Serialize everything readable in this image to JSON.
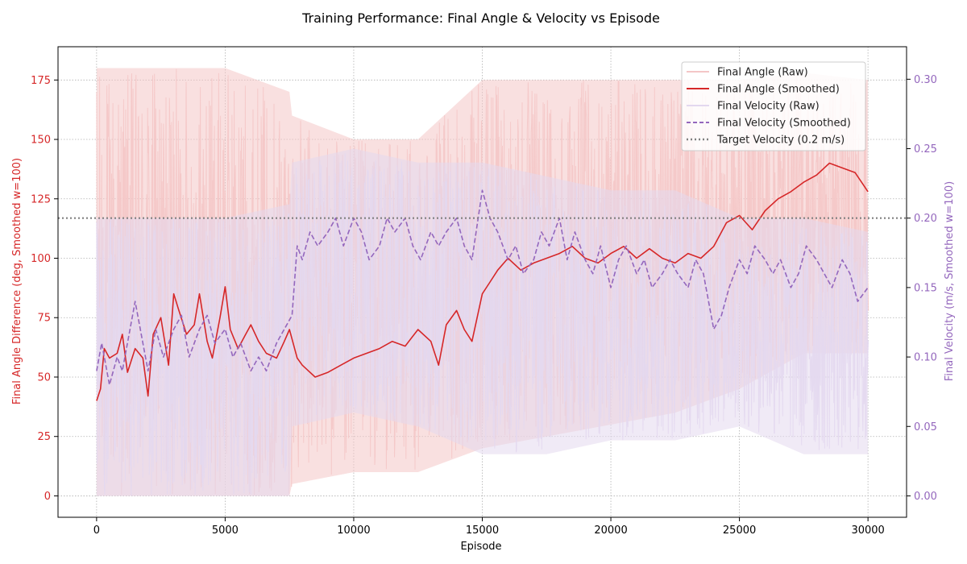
{
  "chart_data": {
    "type": "line",
    "title": "Training Performance: Final Angle & Velocity vs Episode",
    "xlabel": "Episode",
    "ylabel_left": "Final Angle Difference (deg, Smoothed w=100)",
    "ylabel_right": "Final Velocity (m/s, Smoothed w=100)",
    "xlim": [
      -1500,
      31500
    ],
    "ylim_left": [
      -9,
      189
    ],
    "ylim_right": [
      -0.0154,
      0.3234
    ],
    "x_ticks": [
      0,
      5000,
      10000,
      15000,
      20000,
      25000,
      30000
    ],
    "y_left_ticks": [
      0,
      25,
      50,
      75,
      100,
      125,
      150,
      175
    ],
    "y_right_ticks": [
      0.0,
      0.05,
      0.1,
      0.15,
      0.2,
      0.25,
      0.3
    ],
    "y_right_tick_labels": [
      "0.00",
      "0.05",
      "0.10",
      "0.15",
      "0.20",
      "0.25",
      "0.30"
    ],
    "grid": true,
    "legend_position": "top-right",
    "target_velocity": 0.2,
    "colors": {
      "angle": "#d62728",
      "angle_raw": "#f4c6c7",
      "velocity": "#9467bd",
      "velocity_raw": "#e3d8ef",
      "target": "#808080"
    },
    "series": [
      {
        "name": "Final Angle (Raw)",
        "axis": "left",
        "style": "raw-band",
        "x": [
          0,
          2500,
          5000,
          7500,
          7600,
          10000,
          12500,
          15000,
          17500,
          20000,
          22500,
          25000,
          27500,
          30000
        ],
        "low": [
          0,
          0,
          0,
          0,
          5,
          10,
          10,
          20,
          25,
          30,
          35,
          45,
          60,
          60
        ],
        "high": [
          180,
          180,
          180,
          170,
          160,
          150,
          150,
          175,
          175,
          175,
          175,
          175,
          178,
          175
        ]
      },
      {
        "name": "Final Angle (Smoothed)",
        "axis": "left",
        "style": "solid",
        "x": [
          0,
          150,
          300,
          500,
          800,
          1000,
          1200,
          1500,
          1800,
          2000,
          2200,
          2500,
          2800,
          3000,
          3200,
          3500,
          3800,
          4000,
          4300,
          4500,
          4800,
          5000,
          5200,
          5500,
          5800,
          6000,
          6300,
          6600,
          7000,
          7300,
          7500,
          7800,
          8000,
          8500,
          9000,
          9500,
          10000,
          10500,
          11000,
          11500,
          12000,
          12500,
          13000,
          13300,
          13600,
          14000,
          14300,
          14600,
          15000,
          15300,
          15600,
          16000,
          16500,
          17000,
          17500,
          18000,
          18500,
          19000,
          19500,
          20000,
          20500,
          21000,
          21500,
          22000,
          22500,
          23000,
          23500,
          24000,
          24500,
          25000,
          25500,
          26000,
          26500,
          27000,
          27500,
          28000,
          28500,
          29000,
          29500,
          30000
        ],
        "values": [
          40,
          45,
          62,
          58,
          60,
          68,
          52,
          62,
          58,
          42,
          68,
          75,
          55,
          85,
          78,
          68,
          72,
          85,
          65,
          58,
          75,
          88,
          70,
          62,
          68,
          72,
          65,
          60,
          58,
          65,
          70,
          58,
          55,
          50,
          52,
          55,
          58,
          60,
          62,
          65,
          63,
          70,
          65,
          55,
          72,
          78,
          70,
          65,
          85,
          90,
          95,
          100,
          95,
          98,
          100,
          102,
          105,
          100,
          98,
          102,
          105,
          100,
          104,
          100,
          98,
          102,
          100,
          105,
          115,
          118,
          112,
          120,
          125,
          128,
          132,
          135,
          140,
          138,
          136,
          128
        ]
      },
      {
        "name": "Final Velocity (Raw)",
        "axis": "right",
        "style": "raw-band",
        "x": [
          0,
          2500,
          5000,
          7500,
          7600,
          10000,
          12500,
          15000,
          17500,
          20000,
          22500,
          25000,
          27500,
          30000
        ],
        "low": [
          0.0,
          0.0,
          0.0,
          0.0,
          0.05,
          0.06,
          0.05,
          0.03,
          0.03,
          0.04,
          0.04,
          0.05,
          0.03,
          0.03
        ],
        "high": [
          0.2,
          0.2,
          0.2,
          0.21,
          0.24,
          0.25,
          0.24,
          0.24,
          0.23,
          0.22,
          0.22,
          0.2,
          0.2,
          0.19
        ]
      },
      {
        "name": "Final Velocity (Smoothed)",
        "axis": "right",
        "style": "dashed",
        "x": [
          0,
          200,
          500,
          800,
          1000,
          1200,
          1500,
          1800,
          2000,
          2300,
          2600,
          3000,
          3300,
          3600,
          4000,
          4300,
          4600,
          5000,
          5300,
          5600,
          6000,
          6300,
          6600,
          7000,
          7300,
          7600,
          7800,
          8000,
          8300,
          8600,
          9000,
          9300,
          9600,
          10000,
          10300,
          10600,
          11000,
          11300,
          11600,
          12000,
          12300,
          12600,
          13000,
          13300,
          13600,
          14000,
          14300,
          14600,
          15000,
          15300,
          15600,
          16000,
          16300,
          16600,
          17000,
          17300,
          17600,
          18000,
          18300,
          18600,
          19000,
          19300,
          19600,
          20000,
          20300,
          20600,
          21000,
          21300,
          21600,
          22000,
          22300,
          22600,
          23000,
          23300,
          23600,
          24000,
          24300,
          24600,
          25000,
          25300,
          25600,
          26000,
          26300,
          26600,
          27000,
          27300,
          27600,
          28000,
          28300,
          28600,
          29000,
          29300,
          29600,
          30000
        ],
        "values": [
          0.09,
          0.11,
          0.08,
          0.1,
          0.09,
          0.11,
          0.14,
          0.11,
          0.09,
          0.12,
          0.1,
          0.12,
          0.13,
          0.1,
          0.12,
          0.13,
          0.11,
          0.12,
          0.1,
          0.11,
          0.09,
          0.1,
          0.09,
          0.11,
          0.12,
          0.13,
          0.18,
          0.17,
          0.19,
          0.18,
          0.19,
          0.2,
          0.18,
          0.2,
          0.19,
          0.17,
          0.18,
          0.2,
          0.19,
          0.2,
          0.18,
          0.17,
          0.19,
          0.18,
          0.19,
          0.2,
          0.18,
          0.17,
          0.22,
          0.2,
          0.19,
          0.17,
          0.18,
          0.16,
          0.17,
          0.19,
          0.18,
          0.2,
          0.17,
          0.19,
          0.17,
          0.16,
          0.18,
          0.15,
          0.17,
          0.18,
          0.16,
          0.17,
          0.15,
          0.16,
          0.17,
          0.16,
          0.15,
          0.17,
          0.16,
          0.12,
          0.13,
          0.15,
          0.17,
          0.16,
          0.18,
          0.17,
          0.16,
          0.17,
          0.15,
          0.16,
          0.18,
          0.17,
          0.16,
          0.15,
          0.17,
          0.16,
          0.14,
          0.15
        ]
      },
      {
        "name": "Target Velocity (0.2 m/s)",
        "axis": "right",
        "style": "dotted",
        "x": [
          -1500,
          31500
        ],
        "values": [
          0.2,
          0.2
        ]
      }
    ]
  }
}
